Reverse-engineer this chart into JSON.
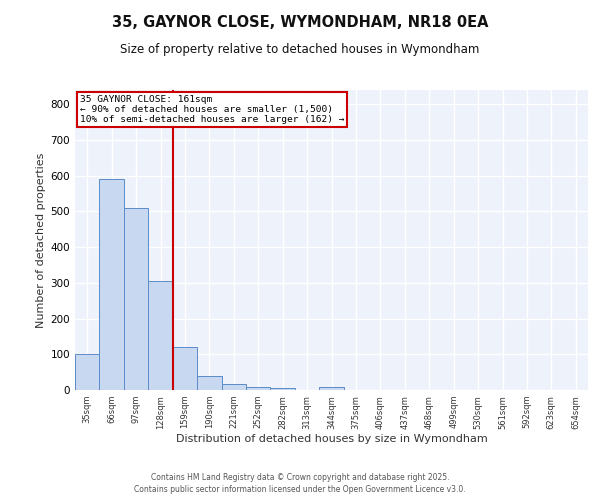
{
  "title": "35, GAYNOR CLOSE, WYMONDHAM, NR18 0EA",
  "subtitle": "Size of property relative to detached houses in Wymondham",
  "xlabel": "Distribution of detached houses by size in Wymondham",
  "ylabel": "Number of detached properties",
  "categories": [
    "35sqm",
    "66sqm",
    "97sqm",
    "128sqm",
    "159sqm",
    "190sqm",
    "221sqm",
    "252sqm",
    "282sqm",
    "313sqm",
    "344sqm",
    "375sqm",
    "406sqm",
    "437sqm",
    "468sqm",
    "499sqm",
    "530sqm",
    "561sqm",
    "592sqm",
    "623sqm",
    "654sqm"
  ],
  "bar_heights": [
    100,
    590,
    510,
    305,
    120,
    40,
    17,
    8,
    5,
    0,
    8,
    0,
    0,
    0,
    0,
    0,
    0,
    0,
    0,
    0,
    0
  ],
  "bar_color": "#c8d8f0",
  "bar_edge_color": "#5b8cc8",
  "vline_color": "#cc0000",
  "annotation_line1": "35 GAYNOR CLOSE: 161sqm",
  "annotation_line2": "← 90% of detached houses are smaller (1,500)",
  "annotation_line3": "10% of semi-detached houses are larger (162) →",
  "annotation_box_color": "#cc0000",
  "ylim": [
    0,
    840
  ],
  "yticks": [
    0,
    100,
    200,
    300,
    400,
    500,
    600,
    700,
    800
  ],
  "footer1": "Contains HM Land Registry data © Crown copyright and database right 2025.",
  "footer2": "Contains public sector information licensed under the Open Government Licence v3.0.",
  "bg_color": "#eef2fb",
  "grid_color": "#ffffff",
  "bar_width": 1.0
}
